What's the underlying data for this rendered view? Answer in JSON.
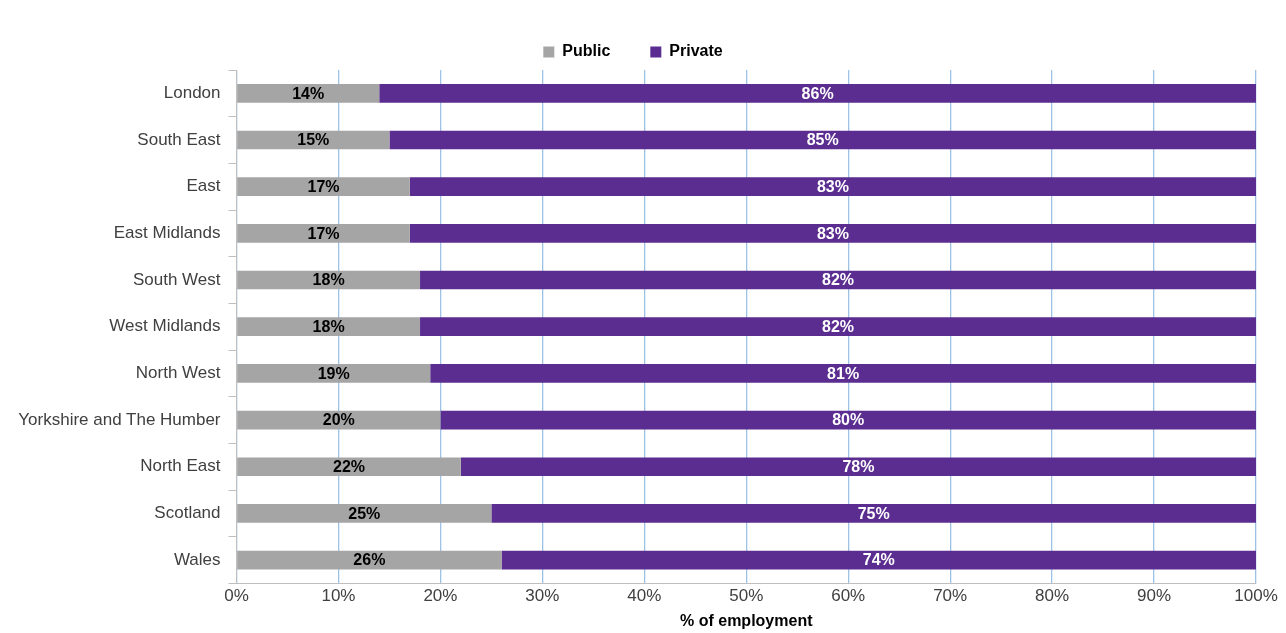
{
  "chart_data": {
    "type": "bar",
    "orientation": "horizontal",
    "stacked": true,
    "xlabel": "% of employment",
    "categories": [
      "London",
      "South East",
      "East",
      "East Midlands",
      "South West",
      "West Midlands",
      "North West",
      "Yorkshire and The Humber",
      "North East",
      "Scotland",
      "Wales"
    ],
    "series": [
      {
        "name": "Public",
        "color": "#a5a5a5",
        "values": [
          14,
          15,
          17,
          17,
          18,
          18,
          19,
          20,
          22,
          25,
          26
        ],
        "value_labels": [
          "14%",
          "15%",
          "17%",
          "17%",
          "18%",
          "18%",
          "19%",
          "20%",
          "22%",
          "25%",
          "26%"
        ]
      },
      {
        "name": "Private",
        "color": "#5b2d90",
        "values": [
          86,
          85,
          83,
          83,
          82,
          82,
          81,
          80,
          78,
          75,
          74
        ],
        "value_labels": [
          "86%",
          "85%",
          "83%",
          "83%",
          "82%",
          "82%",
          "81%",
          "80%",
          "78%",
          "75%",
          "74%"
        ]
      }
    ],
    "xlim": [
      0,
      100
    ],
    "xticks": [
      {
        "value": 0,
        "label": "0%"
      },
      {
        "value": 10,
        "label": "10%"
      },
      {
        "value": 20,
        "label": "20%"
      },
      {
        "value": 30,
        "label": "30%"
      },
      {
        "value": 40,
        "label": "40%"
      },
      {
        "value": 50,
        "label": "50%"
      },
      {
        "value": 60,
        "label": "60%"
      },
      {
        "value": 70,
        "label": "70%"
      },
      {
        "value": 80,
        "label": "80%"
      },
      {
        "value": 90,
        "label": "90%"
      },
      {
        "value": 100,
        "label": "100%"
      }
    ],
    "grid": "x",
    "legend": "top"
  }
}
